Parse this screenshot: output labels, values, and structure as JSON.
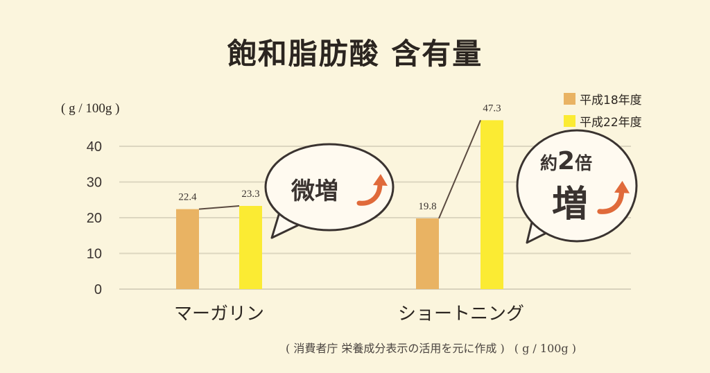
{
  "title": "飽和脂肪酸 含有量",
  "unit_label": "( g / 100g )",
  "footnote": {
    "source": "( 消費者庁 栄養成分表示の活用を元に作成 )",
    "unit": "( g / 100g )"
  },
  "bubbles": {
    "left": {
      "text": "微増"
    },
    "right": {
      "prefix": "約",
      "number": "2",
      "suffix": "倍",
      "main": "増"
    }
  },
  "colors": {
    "h18": "#e9b363",
    "h22": "#fbeb33",
    "background": "#fbf5dd",
    "arrow": "#e06a3a"
  },
  "chart_data": {
    "type": "bar",
    "categories": [
      "マーガリン",
      "ショートニング"
    ],
    "series": [
      {
        "name": "平成18年度",
        "values": [
          22.4,
          19.8
        ]
      },
      {
        "name": "平成22年度",
        "values": [
          23.3,
          47.3
        ]
      }
    ],
    "y_ticks": [
      "0",
      "10",
      "20",
      "30",
      "40"
    ],
    "value_labels": [
      [
        "22.4",
        "19.8"
      ],
      [
        "23.3",
        "47.3"
      ]
    ],
    "ylim": [
      0,
      50
    ],
    "grid": true,
    "legend": "top-right"
  }
}
